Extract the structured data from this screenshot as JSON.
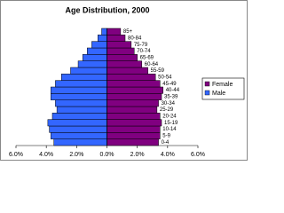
{
  "chart_data": {
    "type": "pyramid",
    "title": "Age Distribution, 2000",
    "categories": [
      "0-4",
      "5-9",
      "10-14",
      "15-19",
      "20-24",
      "25-29",
      "30-34",
      "35-39",
      "40-44",
      "45-49",
      "50-54",
      "55-59",
      "60-64",
      "65-69",
      "70-74",
      "75-79",
      "80-84",
      "85+"
    ],
    "series": [
      {
        "name": "Female",
        "color": "#800080",
        "values": [
          3.4,
          3.5,
          3.5,
          3.6,
          3.5,
          3.3,
          3.4,
          3.6,
          3.7,
          3.5,
          3.2,
          2.7,
          2.3,
          2.0,
          1.8,
          1.6,
          1.2,
          0.9
        ]
      },
      {
        "name": "Male",
        "color": "#3366ff",
        "values": [
          -3.5,
          -3.7,
          -3.8,
          -3.9,
          -3.6,
          -3.3,
          -3.4,
          -3.7,
          -3.7,
          -3.4,
          -3.0,
          -2.4,
          -1.9,
          -1.6,
          -1.3,
          -1.0,
          -0.6,
          -0.35
        ]
      }
    ],
    "xlim": [
      -6,
      6
    ],
    "xticks": [
      {
        "value": -6,
        "label": "6.0%"
      },
      {
        "value": -4,
        "label": "4.0%"
      },
      {
        "value": -2,
        "label": "2.0%"
      },
      {
        "value": 0,
        "label": "0.0%"
      },
      {
        "value": 2,
        "label": "2.0%"
      },
      {
        "value": 4,
        "label": "4.0%"
      },
      {
        "value": 6,
        "label": "6.0%"
      }
    ],
    "legend": "right"
  }
}
